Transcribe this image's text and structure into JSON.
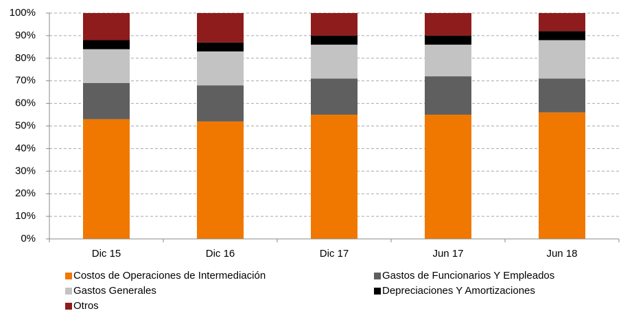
{
  "chart_data": {
    "type": "stacked_bar",
    "categories": [
      "Dic 15",
      "Dic 16",
      "Dic 17",
      "Jun 17",
      "Jun 18"
    ],
    "series": [
      {
        "name": "Costos de Operaciones de Intermediación",
        "color": "#f07800",
        "values": [
          53,
          52,
          55,
          55,
          56
        ]
      },
      {
        "name": "Gastos de Funcionarios Y Empleados",
        "color": "#5f5f5f",
        "values": [
          16,
          16,
          16,
          17,
          15
        ]
      },
      {
        "name": "Gastos Generales",
        "color": "#c3c3c3",
        "values": [
          15,
          15,
          15,
          14,
          17
        ]
      },
      {
        "name": "Depreciaciones Y Amortizaciones",
        "color": "#000000",
        "values": [
          4,
          4,
          4,
          4,
          4
        ]
      },
      {
        "name": "Otros",
        "color": "#8e1c1c",
        "values": [
          12,
          13,
          10,
          10,
          8
        ]
      }
    ],
    "ylim": [
      0,
      100
    ],
    "yticks": [
      {
        "value": 0,
        "label": "0%"
      },
      {
        "value": 10,
        "label": "10%"
      },
      {
        "value": 20,
        "label": "20%"
      },
      {
        "value": 30,
        "label": "30%"
      },
      {
        "value": 40,
        "label": "40%"
      },
      {
        "value": 50,
        "label": "50%"
      },
      {
        "value": 60,
        "label": "60%"
      },
      {
        "value": 70,
        "label": "70%"
      },
      {
        "value": 80,
        "label": "80%"
      },
      {
        "value": 90,
        "label": "90%"
      },
      {
        "value": 100,
        "label": "100%"
      }
    ],
    "grid": true
  }
}
